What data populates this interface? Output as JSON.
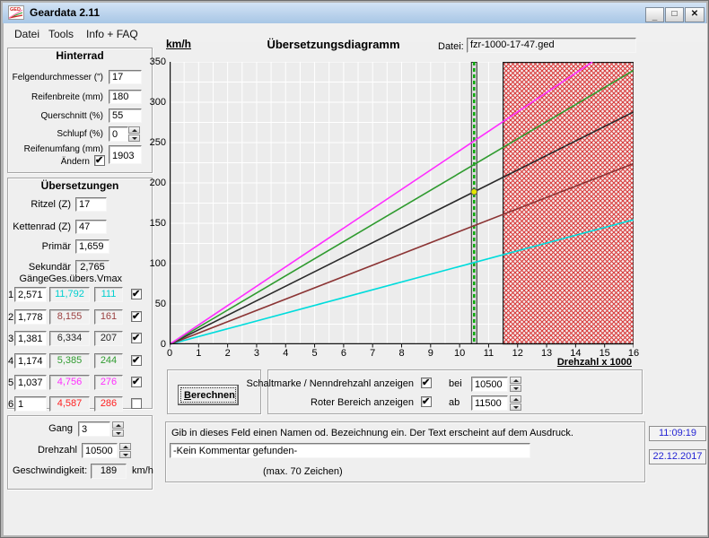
{
  "window": {
    "icon_text": "GED",
    "title": "Geardata 2.11",
    "minimize": "_",
    "maximize": "□",
    "close": "✕"
  },
  "menu": {
    "items": [
      {
        "label": "Datei"
      },
      {
        "label": "Tools"
      },
      {
        "label": "Info + FAQ"
      }
    ]
  },
  "hinterrad": {
    "title": "Hinterrad",
    "felgen_label": "Felgendurchmesser (\")",
    "felgen_value": "17",
    "breite_label": "Reifenbreite (mm)",
    "breite_value": "180",
    "quer_label": "Querschnitt (%)",
    "quer_value": "55",
    "schlupf_label": "Schlupf (%)",
    "schlupf_value": "0",
    "umfang_label": "Reifenumfang (mm)",
    "umfang_value": "1903",
    "aendern_label": "Ändern",
    "aendern_checked": true
  },
  "uebersetzungen": {
    "title": "Übersetzungen",
    "ritzel_label": "Ritzel (Z)",
    "ritzel_value": "17",
    "kettenrad_label": "Kettenrad (Z)",
    "kettenrad_value": "47",
    "primaer_label": "Primär",
    "primaer_value": "1,659",
    "sekundaer_label": "Sekundär",
    "sekundaer_value": "2,765",
    "table": {
      "col_gaenge": "Gänge",
      "col_gesuebers": "Ges.übers.",
      "col_vmax": "Vmax",
      "rows": [
        {
          "num": "1",
          "ratio": "2,571",
          "total": "11,792",
          "vmax": "111",
          "color": "#00cfcf",
          "checked": true
        },
        {
          "num": "2",
          "ratio": "1,778",
          "total": "8,155",
          "vmax": "161",
          "color": "#9a4040",
          "checked": true
        },
        {
          "num": "3",
          "ratio": "1,381",
          "total": "6,334",
          "vmax": "207",
          "color": "#262626",
          "checked": true
        },
        {
          "num": "4",
          "ratio": "1,174",
          "total": "5,385",
          "vmax": "244",
          "color": "#2f9b2f",
          "checked": true
        },
        {
          "num": "5",
          "ratio": "1,037",
          "total": "4,756",
          "vmax": "276",
          "color": "#ff2cff",
          "checked": true
        },
        {
          "num": "6",
          "ratio": "1",
          "total": "4,587",
          "vmax": "286",
          "color": "#ff1e1e",
          "checked": false
        }
      ]
    }
  },
  "gangpanel": {
    "gang_label": "Gang",
    "gang_value": "3",
    "drehzahl_label": "Drehzahl",
    "drehzahl_value": "10500",
    "geschw_label": "Geschwindigkeit:",
    "geschw_value": "189",
    "geschw_unit": "km/h"
  },
  "chart": {
    "ylabel": "km/h",
    "title": "Übersetzungsdiagramm",
    "file_label": "Datei:",
    "file_value": "fzr-1000-17-47.ged",
    "xlabel": "Drehzahl x 1000"
  },
  "chart_data": {
    "type": "line",
    "title": "Übersetzungsdiagramm",
    "xlabel": "Drehzahl x 1000",
    "ylabel": "km/h",
    "xlim": [
      0,
      16
    ],
    "ylim": [
      0,
      350
    ],
    "x_ticks": [
      0,
      1,
      2,
      3,
      4,
      5,
      6,
      7,
      8,
      9,
      10,
      11,
      12,
      13,
      14,
      15,
      16
    ],
    "y_ticks": [
      0,
      50,
      100,
      150,
      200,
      250,
      300,
      350
    ],
    "grid_step_x": 0.5,
    "grid_step_y": 25,
    "grid_color": "#ffffff",
    "bg_color": "#ececec",
    "vmax_at_rpm_x": 11.5,
    "series": [
      {
        "name": "Gang 1",
        "color": "#00dcdc",
        "vmax": 111,
        "shown": true
      },
      {
        "name": "Gang 2",
        "color": "#8b3434",
        "vmax": 161,
        "shown": true
      },
      {
        "name": "Gang 3",
        "color": "#2a2a2a",
        "vmax": 207,
        "shown": true
      },
      {
        "name": "Gang 4",
        "color": "#2f9b2f",
        "vmax": 244,
        "shown": true
      },
      {
        "name": "Gang 5",
        "color": "#ff2cff",
        "vmax": 276,
        "shown": true
      },
      {
        "name": "Gang 6",
        "color": "#ff1e1e",
        "vmax": 286,
        "shown": false
      }
    ],
    "shift_mark_x": 10.5,
    "shift_mark_color": "#00a800",
    "red_zone_x": [
      11.5,
      16
    ],
    "red_zone_color": "#d93b3b",
    "marker": {
      "x": 10.5,
      "y": 189,
      "color": "#e6e600"
    }
  },
  "controls": {
    "berechnen_accel": "B",
    "berechnen_rest": "erechnen",
    "schaltmarke_label": "Schaltmarke / Nenndrehzahl anzeigen",
    "schaltmarke_checked": true,
    "bei_label": "bei",
    "bei_value": "10500",
    "roter_label": "Roter Bereich anzeigen",
    "roter_checked": true,
    "ab_label": "ab",
    "ab_value": "11500"
  },
  "comment": {
    "hint": "Gib in dieses Feld einen Namen od. Bezeichnung ein. Der Text erscheint auf dem Ausdruck.",
    "value": "-Kein Kommentar gefunden-",
    "max_label": "(max. 70 Zeichen)"
  },
  "clock": {
    "time": "11:09:19",
    "date": "22.12.2017",
    "color": "#2424d4"
  }
}
